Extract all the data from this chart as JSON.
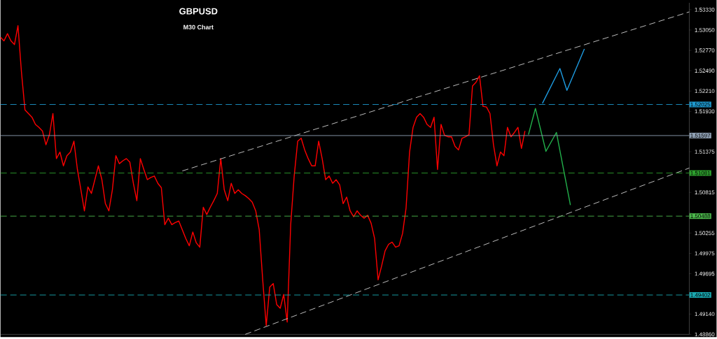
{
  "chart_data": {
    "type": "line",
    "title": "GBPUSD",
    "subtitle": "M30 Chart",
    "categories": [
      null,
      null,
      null,
      null,
      null,
      null,
      null,
      null,
      null,
      null,
      null,
      null,
      null,
      null,
      null,
      null,
      null,
      null,
      null,
      null,
      null,
      null,
      null,
      null,
      null,
      null,
      null,
      null,
      null,
      null,
      null,
      null,
      null,
      null,
      null,
      null,
      null,
      null,
      null,
      null,
      null,
      null,
      null,
      null,
      null,
      null,
      null,
      null,
      null,
      null,
      null,
      null,
      null,
      null,
      null,
      null,
      null,
      null,
      null,
      null,
      null,
      null,
      null,
      null,
      null,
      null,
      null,
      null,
      null,
      null,
      null,
      null,
      null,
      null,
      null,
      null,
      null,
      null,
      null,
      null,
      null,
      null,
      null,
      null,
      null,
      null,
      null,
      null,
      null,
      null,
      null,
      null,
      null,
      null,
      null,
      null,
      null,
      null,
      null,
      null,
      null,
      null,
      null,
      null,
      null,
      null,
      null,
      null,
      null,
      null,
      null,
      null,
      null,
      null,
      null,
      null,
      null,
      null,
      null,
      null,
      null,
      null,
      null,
      null,
      null,
      null,
      null,
      null,
      null,
      null,
      null,
      null,
      null,
      null,
      null,
      null,
      null,
      null,
      null,
      null,
      null,
      null,
      null,
      null,
      null,
      null,
      null,
      null,
      null,
      null,
      null,
      null,
      null,
      null,
      null,
      null,
      null,
      null,
      null,
      null,
      null,
      null,
      null,
      null,
      null,
      null,
      null,
      null,
      null,
      null,
      null,
      null,
      null,
      null,
      null,
      null,
      null,
      null,
      null,
      null,
      null,
      null,
      null,
      null,
      null,
      null,
      null,
      null,
      null,
      null,
      null,
      null,
      null,
      null,
      null,
      null,
      null,
      null
    ],
    "ylim": [
      1.4886,
      1.53425
    ],
    "tick_labels": "y",
    "grid": false,
    "yticks": [
      {
        "value": 1.5333,
        "label": "1.53330"
      },
      {
        "value": 1.5305,
        "label": "1.53050"
      },
      {
        "value": 1.5277,
        "label": "1.52770"
      },
      {
        "value": 1.5249,
        "label": "1.52490"
      },
      {
        "value": 1.5221,
        "label": "1.52210"
      },
      {
        "value": 1.5193,
        "label": "1.51930"
      },
      {
        "value": 1.51655,
        "label": null
      },
      {
        "value": 1.51375,
        "label": "1.51375"
      },
      {
        "value": 1.51095,
        "label": null
      },
      {
        "value": 1.50815,
        "label": "1.50815"
      },
      {
        "value": 1.50535,
        "label": null
      },
      {
        "value": 1.50255,
        "label": "1.50255"
      },
      {
        "value": 1.49975,
        "label": "1.49975"
      },
      {
        "value": 1.49695,
        "label": "1.49695"
      },
      {
        "value": 1.49415,
        "label": null
      },
      {
        "value": 1.4914,
        "label": "1.49140"
      },
      {
        "value": 1.4886,
        "label": "1.48860"
      }
    ],
    "ref_lines": [
      {
        "axis": "y",
        "value": 1.52025,
        "label": "1.52025",
        "color": "#1e9ad0",
        "line_style": "dashed"
      },
      {
        "axis": "y",
        "value": 1.51597,
        "label": "1.51597",
        "color": "#8fa0b4",
        "line_style": "solid"
      },
      {
        "axis": "y",
        "value": 1.51081,
        "label": "1.51081",
        "color": "#2ea02e",
        "line_style": "dashed"
      },
      {
        "axis": "y",
        "value": 1.50488,
        "label": "1.50488",
        "color": "#4cb84c",
        "line_style": "dashed"
      },
      {
        "axis": "y",
        "value": 1.49402,
        "label": "1.49402",
        "color": "#1aa8b0",
        "line_style": "dashed"
      }
    ],
    "series": [
      {
        "type": "line",
        "color": "#ff0000",
        "line_style": "solid",
        "values": [
          1.5295,
          1.529,
          1.53,
          1.529,
          1.5285,
          1.5311,
          1.5247,
          1.5195,
          1.519,
          1.5185,
          1.5175,
          1.5171,
          1.5166,
          1.5147,
          1.5161,
          1.519,
          1.5128,
          1.5137,
          1.5118,
          1.5132,
          1.5137,
          1.5152,
          1.5113,
          1.5085,
          1.5056,
          1.5089,
          1.508,
          1.5099,
          1.5118,
          1.5099,
          1.5066,
          1.5056,
          1.5085,
          1.5132,
          1.5121,
          1.5125,
          1.5128,
          1.5123,
          1.5094,
          1.507,
          1.5128,
          1.5113,
          1.5099,
          1.5102,
          1.5104,
          1.5094,
          1.5088,
          1.5037,
          1.5046,
          1.5037,
          1.504,
          1.5042,
          1.503,
          1.5018,
          1.5008,
          1.5027,
          1.5012,
          1.5006,
          1.5061,
          1.5051,
          1.5061,
          1.507,
          1.508,
          1.5128,
          1.5085,
          1.507,
          1.5094,
          1.508,
          1.5085,
          1.508,
          1.5077,
          1.5073,
          1.5068,
          1.5056,
          1.503,
          1.4961,
          1.4898,
          1.4951,
          1.4956,
          1.4927,
          1.4922,
          1.4941,
          1.4903,
          1.5037,
          1.5104,
          1.5152,
          1.5156,
          1.514,
          1.5128,
          1.5118,
          1.5118,
          1.5152,
          1.5128,
          1.5099,
          1.5104,
          1.5094,
          1.5099,
          1.5092,
          1.5066,
          1.5075,
          1.5056,
          1.5048,
          1.5056,
          1.505,
          1.5046,
          1.505,
          1.5039,
          1.5018,
          1.4961,
          1.498,
          1.5001,
          1.501,
          1.5013,
          1.5006,
          1.5008,
          1.5025,
          1.506,
          1.5137,
          1.5171,
          1.5185,
          1.519,
          1.5185,
          1.5175,
          1.5171,
          1.5185,
          1.5113,
          1.5175,
          1.516,
          1.5158,
          1.5158,
          1.5145,
          1.514,
          1.5156,
          1.5158,
          1.5161,
          1.5228,
          1.5233,
          1.5242,
          1.52,
          1.5199,
          1.519,
          1.5147,
          1.5118,
          1.5137,
          1.5132,
          1.5171,
          1.5158,
          1.5164,
          1.5171,
          1.5142,
          1.5166,
          null,
          null,
          null,
          null,
          null,
          null,
          null,
          null,
          null,
          null,
          null,
          null,
          null,
          null,
          null,
          null,
          null,
          null,
          null,
          null,
          null,
          null,
          null,
          null,
          null,
          null,
          null,
          null,
          null,
          null,
          null,
          null,
          null,
          null,
          null,
          null,
          null,
          null,
          null,
          null,
          null,
          null,
          null,
          null,
          null,
          null,
          null
        ]
      },
      {
        "type": "line",
        "color": "#d0d0d0",
        "line_style": "dashed",
        "values": [
          null,
          null,
          null,
          null,
          null,
          null,
          null,
          null,
          null,
          null,
          null,
          null,
          null,
          null,
          null,
          null,
          null,
          null,
          null,
          null,
          null,
          null,
          null,
          null,
          null,
          null,
          null,
          null,
          null,
          null,
          null,
          null,
          null,
          null,
          null,
          null,
          null,
          null,
          null,
          null,
          null,
          null,
          null,
          null,
          null,
          null,
          null,
          null,
          null,
          null,
          null,
          null,
          1.5111,
          null,
          null,
          null,
          null,
          null,
          null,
          null,
          null,
          null,
          null,
          null,
          null,
          null,
          null,
          null,
          null,
          null,
          null,
          null,
          null,
          null,
          null,
          null,
          null,
          null,
          null,
          null,
          null,
          null,
          null,
          null,
          null,
          null,
          null,
          null,
          null,
          null,
          null,
          null,
          null,
          null,
          null,
          null,
          null,
          null,
          null,
          null,
          null,
          null,
          null,
          null,
          null,
          null,
          null,
          null,
          null,
          null,
          null,
          null,
          null,
          null,
          null,
          null,
          null,
          null,
          null,
          null,
          null,
          null,
          null,
          null,
          null,
          null,
          null,
          null,
          null,
          null,
          null,
          null,
          null,
          null,
          null,
          null,
          null,
          null,
          null,
          null,
          null,
          null,
          null,
          null,
          null,
          null,
          null,
          null,
          null,
          null,
          null,
          null,
          null,
          null,
          null,
          null,
          null,
          null,
          null,
          null,
          null,
          null,
          null,
          null,
          null,
          null,
          null,
          null,
          null,
          null,
          null,
          null,
          null,
          null,
          null,
          null,
          null,
          null,
          null,
          null,
          null,
          null,
          null,
          null,
          null,
          null,
          null,
          null,
          null,
          null,
          null,
          null,
          null,
          null,
          null,
          null,
          null,
          1.533
        ]
      },
      {
        "type": "line",
        "color": "#d0d0d0",
        "line_style": "dashed",
        "values": [
          null,
          null,
          null,
          null,
          null,
          null,
          null,
          null,
          null,
          null,
          null,
          null,
          null,
          null,
          null,
          null,
          null,
          null,
          null,
          null,
          null,
          null,
          null,
          null,
          null,
          null,
          null,
          null,
          null,
          null,
          null,
          null,
          null,
          null,
          null,
          null,
          null,
          null,
          null,
          null,
          null,
          null,
          null,
          null,
          null,
          null,
          null,
          null,
          null,
          null,
          null,
          null,
          null,
          null,
          null,
          null,
          null,
          null,
          null,
          null,
          null,
          null,
          null,
          null,
          null,
          null,
          null,
          null,
          null,
          null,
          1.4886,
          null,
          null,
          null,
          null,
          null,
          null,
          null,
          null,
          null,
          null,
          null,
          null,
          null,
          null,
          null,
          null,
          null,
          null,
          null,
          null,
          null,
          null,
          null,
          null,
          null,
          null,
          null,
          null,
          null,
          null,
          null,
          null,
          null,
          null,
          null,
          null,
          null,
          null,
          null,
          null,
          null,
          null,
          null,
          null,
          null,
          null,
          null,
          null,
          null,
          null,
          null,
          null,
          null,
          null,
          null,
          null,
          null,
          null,
          null,
          null,
          null,
          null,
          null,
          null,
          null,
          null,
          null,
          null,
          null,
          null,
          null,
          null,
          null,
          null,
          null,
          null,
          null,
          null,
          null,
          null,
          null,
          null,
          null,
          null,
          null,
          null,
          null,
          null,
          null,
          null,
          null,
          null,
          null,
          null,
          null,
          null,
          null,
          null,
          null,
          null,
          null,
          null,
          null,
          null,
          null,
          null,
          null,
          null,
          null,
          null,
          null,
          null,
          null,
          null,
          null,
          null,
          null,
          null,
          null,
          null,
          null,
          null,
          null,
          null,
          null,
          null,
          1.5115
        ]
      },
      {
        "type": "line",
        "color": "#1e9be0",
        "line_style": "solid",
        "values": [
          null,
          null,
          null,
          null,
          null,
          null,
          null,
          null,
          null,
          null,
          null,
          null,
          null,
          null,
          null,
          null,
          null,
          null,
          null,
          null,
          null,
          null,
          null,
          null,
          null,
          null,
          null,
          null,
          null,
          null,
          null,
          null,
          null,
          null,
          null,
          null,
          null,
          null,
          null,
          null,
          null,
          null,
          null,
          null,
          null,
          null,
          null,
          null,
          null,
          null,
          null,
          null,
          null,
          null,
          null,
          null,
          null,
          null,
          null,
          null,
          null,
          null,
          null,
          null,
          null,
          null,
          null,
          null,
          null,
          null,
          null,
          null,
          null,
          null,
          null,
          null,
          null,
          null,
          null,
          null,
          null,
          null,
          null,
          null,
          null,
          null,
          null,
          null,
          null,
          null,
          null,
          null,
          null,
          null,
          null,
          null,
          null,
          null,
          null,
          null,
          null,
          null,
          null,
          null,
          null,
          null,
          null,
          null,
          null,
          null,
          null,
          null,
          null,
          null,
          null,
          null,
          null,
          null,
          null,
          null,
          null,
          null,
          null,
          null,
          null,
          null,
          null,
          null,
          null,
          null,
          null,
          null,
          null,
          null,
          null,
          null,
          null,
          null,
          null,
          null,
          null,
          null,
          null,
          null,
          null,
          null,
          null,
          null,
          null,
          null,
          null,
          null,
          null,
          null,
          null,
          1.5204,
          null,
          null,
          null,
          null,
          1.5252,
          null,
          1.5222,
          null,
          null,
          null,
          null,
          1.5279,
          null,
          null,
          null,
          null,
          null,
          null,
          null,
          null,
          null,
          null,
          null,
          null,
          null,
          null,
          null,
          null,
          null,
          null,
          null,
          null,
          null,
          null,
          null,
          null,
          null,
          null,
          null,
          null,
          null,
          null
        ]
      },
      {
        "type": "line",
        "color": "#22b04b",
        "line_style": "solid",
        "values": [
          null,
          null,
          null,
          null,
          null,
          null,
          null,
          null,
          null,
          null,
          null,
          null,
          null,
          null,
          null,
          null,
          null,
          null,
          null,
          null,
          null,
          null,
          null,
          null,
          null,
          null,
          null,
          null,
          null,
          null,
          null,
          null,
          null,
          null,
          null,
          null,
          null,
          null,
          null,
          null,
          null,
          null,
          null,
          null,
          null,
          null,
          null,
          null,
          null,
          null,
          null,
          null,
          null,
          null,
          null,
          null,
          null,
          null,
          null,
          null,
          null,
          null,
          null,
          null,
          null,
          null,
          null,
          null,
          null,
          null,
          null,
          null,
          null,
          null,
          null,
          null,
          null,
          null,
          null,
          null,
          null,
          null,
          null,
          null,
          null,
          null,
          null,
          null,
          null,
          null,
          null,
          null,
          null,
          null,
          null,
          null,
          null,
          null,
          null,
          null,
          null,
          null,
          null,
          null,
          null,
          null,
          null,
          null,
          null,
          null,
          null,
          null,
          null,
          null,
          null,
          null,
          null,
          null,
          null,
          null,
          null,
          null,
          null,
          null,
          null,
          null,
          null,
          null,
          null,
          null,
          null,
          null,
          null,
          null,
          null,
          null,
          null,
          null,
          null,
          null,
          null,
          null,
          null,
          null,
          null,
          null,
          null,
          null,
          null,
          null,
          null,
          1.5161,
          null,
          1.5197,
          null,
          null,
          1.5138,
          null,
          null,
          1.5164,
          null,
          null,
          null,
          1.5064,
          null,
          null,
          null,
          null,
          null,
          null,
          null,
          null,
          null,
          null,
          null,
          null,
          null,
          null,
          null,
          null,
          null,
          null,
          null,
          null,
          null,
          null,
          null,
          null,
          null,
          null,
          null,
          null,
          null,
          null,
          null,
          null,
          null,
          null
        ]
      }
    ]
  }
}
